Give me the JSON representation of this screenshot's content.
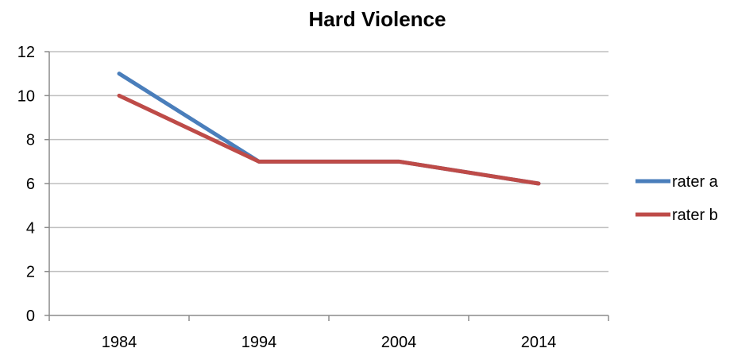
{
  "chart_data": {
    "type": "line",
    "title": "Hard Violence",
    "xlabel": "",
    "ylabel": "",
    "categories": [
      "1984",
      "1994",
      "2004",
      "2014"
    ],
    "yticks": [
      "0",
      "2",
      "4",
      "6",
      "8",
      "10",
      "12"
    ],
    "ylim": [
      0,
      12
    ],
    "grid": true,
    "legend_position": "right",
    "series": [
      {
        "name": "rater a",
        "color": "#4a7ebb",
        "values": [
          11,
          7,
          7,
          6
        ]
      },
      {
        "name": "rater b",
        "color": "#be4b48",
        "values": [
          10,
          7,
          7,
          6
        ]
      }
    ]
  }
}
